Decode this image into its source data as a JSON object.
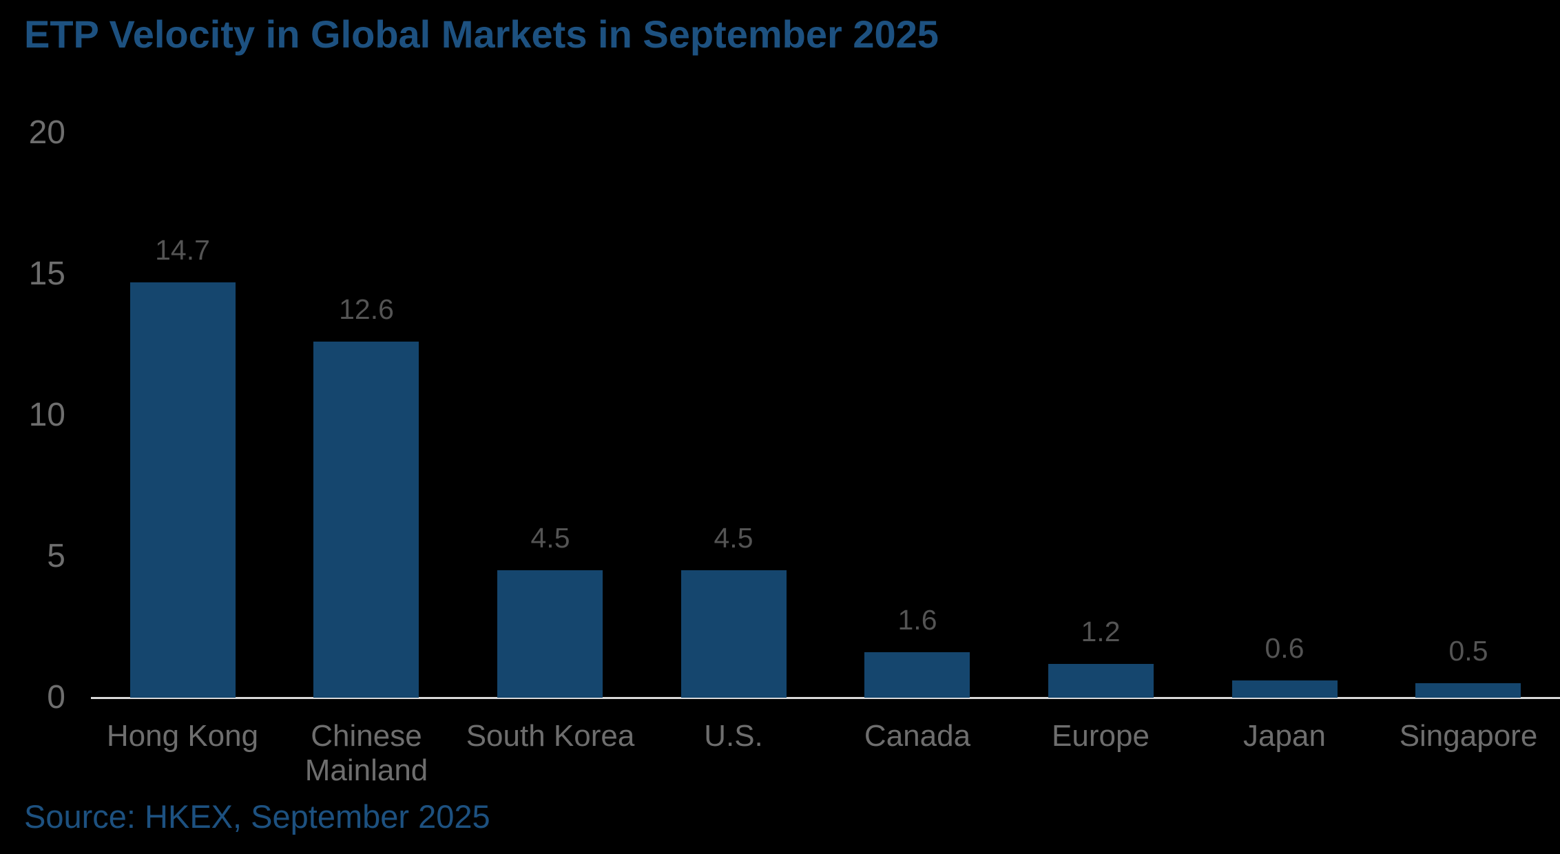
{
  "title": "ETP Velocity in Global Markets in September 2025",
  "source": "Source: HKEX, September 2025",
  "colors": {
    "background": "#000000",
    "title_blue": "#1D5180",
    "source_blue": "#1D5180",
    "bar_blue": "#15466E",
    "axis_line_gray": "#D9D9D9",
    "tick_label_gray": "#6E6E6E",
    "category_label_gray": "#6E6E6E",
    "value_label_gray": "#545454"
  },
  "chart_data": {
    "type": "bar",
    "title": "ETP Velocity in Global Markets in September 2025",
    "categories": [
      "Hong Kong",
      "Chinese Mainland",
      "South Korea",
      "U.S.",
      "Canada",
      "Europe",
      "Japan",
      "Singapore"
    ],
    "values": [
      14.7,
      12.6,
      4.5,
      4.5,
      1.6,
      1.2,
      0.6,
      0.5
    ],
    "value_labels": [
      "14.7",
      "12.6",
      "4.5",
      "4.5",
      "1.6",
      "1.2",
      "0.6",
      "0.5"
    ],
    "xlabel": "",
    "ylabel": "",
    "ylim": [
      0,
      20
    ],
    "yticks": [
      0,
      5,
      10,
      15,
      20
    ],
    "grid": false,
    "legend": "none",
    "source_note": "Source: HKEX, September 2025"
  }
}
